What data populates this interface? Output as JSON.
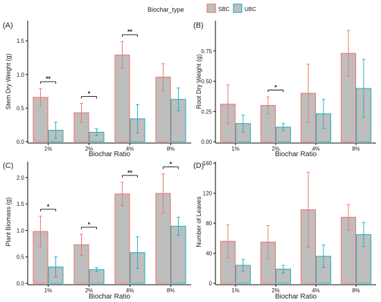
{
  "legend": {
    "title": "Biochar_type",
    "items": [
      {
        "label": "SBC",
        "color": "#f0756a"
      },
      {
        "label": "UBC",
        "color": "#1fb3c0"
      }
    ]
  },
  "colors": {
    "fill": "#bebebe",
    "sbc": "#f0756a",
    "ubc": "#1fb3c0",
    "axis": "#000000"
  },
  "chart_data": [
    {
      "type": "bar",
      "panel": "(A)",
      "xlabel": "Biochar Ratio",
      "ylabel": "Stem Dry Weight (g)",
      "categories": [
        "1%",
        "2%",
        "4%",
        "8%"
      ],
      "ylim": [
        0,
        1.8
      ],
      "yticks": [
        0.0,
        0.5,
        1.0,
        1.5
      ],
      "tick_decimals": 1,
      "series": [
        {
          "name": "SBC",
          "values": [
            0.66,
            0.43,
            1.29,
            0.96
          ],
          "errors": [
            0.13,
            0.14,
            0.2,
            0.2
          ]
        },
        {
          "name": "UBC",
          "values": [
            0.17,
            0.14,
            0.34,
            0.63
          ],
          "errors": [
            0.12,
            0.05,
            0.21,
            0.17
          ]
        }
      ],
      "significance": [
        "**",
        "*",
        "**",
        ""
      ]
    },
    {
      "type": "bar",
      "panel": "(B)",
      "xlabel": "Biochar Ratio",
      "ylabel": "Root Dry Weight (g)",
      "categories": [
        "1%",
        "2%",
        "4%",
        "8%"
      ],
      "ylim": [
        0,
        1.0
      ],
      "yticks": [
        0.0,
        0.25,
        0.5,
        0.75
      ],
      "tick_decimals": 2,
      "series": [
        {
          "name": "SBC",
          "values": [
            0.31,
            0.3,
            0.4,
            0.73
          ],
          "errors": [
            0.16,
            0.07,
            0.24,
            0.19
          ]
        },
        {
          "name": "UBC",
          "values": [
            0.15,
            0.12,
            0.23,
            0.44
          ],
          "errors": [
            0.07,
            0.03,
            0.12,
            0.24
          ]
        }
      ],
      "significance": [
        "",
        "*",
        "",
        ""
      ]
    },
    {
      "type": "bar",
      "panel": "(C)",
      "xlabel": "Biochar Ratio",
      "ylabel": "Plant Biomass (g)",
      "categories": [
        "1%",
        "2%",
        "4%",
        "8%"
      ],
      "ylim": [
        0,
        2.3
      ],
      "yticks": [
        0.0,
        0.5,
        1.0,
        1.5,
        2.0
      ],
      "tick_decimals": 1,
      "series": [
        {
          "name": "SBC",
          "values": [
            0.98,
            0.73,
            1.69,
            1.7
          ],
          "errors": [
            0.29,
            0.2,
            0.22,
            0.37
          ]
        },
        {
          "name": "UBC",
          "values": [
            0.31,
            0.26,
            0.58,
            1.08
          ],
          "errors": [
            0.19,
            0.04,
            0.3,
            0.17
          ]
        }
      ],
      "significance": [
        "*",
        "*",
        "**",
        "*"
      ]
    },
    {
      "type": "bar",
      "panel": "(D)",
      "xlabel": "Biochar Ratio",
      "ylabel": "Number of Leaves",
      "categories": [
        "1%",
        "2%",
        "4%",
        "8%"
      ],
      "ylim": [
        0,
        162
      ],
      "yticks": [
        0,
        40,
        80,
        120,
        160
      ],
      "tick_decimals": 0,
      "series": [
        {
          "name": "SBC",
          "values": [
            56,
            55,
            98,
            88
          ],
          "errors": [
            22,
            22,
            50,
            17
          ]
        },
        {
          "name": "UBC",
          "values": [
            24,
            19,
            36,
            65
          ],
          "errors": [
            8,
            5,
            15,
            16
          ]
        }
      ],
      "significance": [
        "",
        "",
        "",
        ""
      ]
    }
  ]
}
